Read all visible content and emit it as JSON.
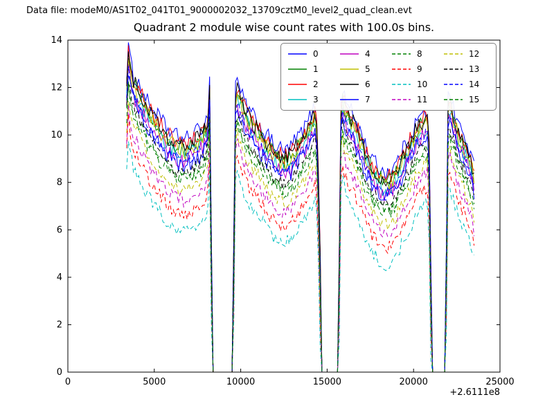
{
  "header": {
    "data_file_label": "Data file: modeM0/AS1T02_041T01_9000002032_13709cztM0_level2_quad_clean.evt"
  },
  "chart_data": {
    "type": "line",
    "title": "Quadrant 2 module wise count rates with 100.0s bins.",
    "xlabel": "",
    "ylabel": "",
    "xlim": [
      0,
      25000
    ],
    "ylim": [
      0,
      14
    ],
    "x_ticks": [
      0,
      5000,
      10000,
      15000,
      20000,
      25000
    ],
    "y_ticks": [
      0,
      2,
      4,
      6,
      8,
      10,
      12,
      14
    ],
    "x_offset_text": "+2.6111e8",
    "bin_seconds": 100.0,
    "grid": false,
    "legend_location": "upper center",
    "legend_columns": 4,
    "resample_step": 100,
    "noise_amplitude_solid": 0.35,
    "noise_amplitude_dashed": 0.28,
    "base_curve": {
      "x": [
        3400,
        3500,
        3650,
        3800,
        4000,
        4200,
        4400,
        4600,
        4800,
        5000,
        5200,
        5400,
        5600,
        5800,
        6000,
        6200,
        6400,
        6600,
        6800,
        7000,
        7200,
        7400,
        7600,
        7800,
        8000,
        8100,
        8200,
        8280,
        8330,
        9550,
        9650,
        9750,
        9900,
        10100,
        10300,
        10500,
        10700,
        10900,
        11100,
        11300,
        11500,
        11700,
        11900,
        12100,
        12300,
        12500,
        12700,
        12900,
        13100,
        13300,
        13500,
        13700,
        13900,
        14100,
        14300,
        14450,
        14600,
        14700,
        15650,
        15750,
        15850,
        16000,
        16200,
        16400,
        16600,
        16800,
        17000,
        17200,
        17400,
        17600,
        17800,
        18000,
        18200,
        18400,
        18600,
        18800,
        19000,
        19200,
        19400,
        19600,
        19800,
        20000,
        20200,
        20400,
        20600,
        20800,
        20950,
        21050,
        21850,
        21950,
        22050,
        22200,
        22350,
        22500,
        22650,
        22800,
        22950,
        23100,
        23250,
        23400,
        23500,
        23550
      ],
      "y": [
        12.5,
        13.8,
        12.9,
        12.5,
        12.3,
        12.0,
        11.7,
        11.4,
        11.2,
        11.0,
        10.8,
        10.6,
        10.4,
        10.2,
        10.1,
        10.0,
        9.9,
        9.9,
        9.8,
        9.9,
        10.0,
        10.1,
        10.2,
        10.4,
        10.6,
        11.0,
        12.3,
        10.0,
        0,
        0,
        11.5,
        12.4,
        12.0,
        11.6,
        11.3,
        11.0,
        10.8,
        10.6,
        10.4,
        10.2,
        10.0,
        9.8,
        9.6,
        9.5,
        9.4,
        9.3,
        9.4,
        9.5,
        9.7,
        9.9,
        10.1,
        10.3,
        10.6,
        10.9,
        11.2,
        10.2,
        5.0,
        0,
        0,
        10.5,
        12.2,
        11.6,
        11.2,
        11.0,
        10.7,
        10.4,
        10.0,
        9.6,
        9.3,
        9.0,
        8.8,
        8.6,
        8.5,
        8.4,
        8.5,
        8.6,
        8.8,
        9.1,
        9.4,
        9.7,
        10.0,
        10.3,
        10.6,
        10.8,
        10.9,
        11.0,
        9.0,
        0,
        0,
        11.2,
        11.9,
        11.4,
        11.0,
        10.7,
        10.4,
        10.1,
        9.9,
        9.6,
        9.3,
        9.0,
        8.6,
        0
      ]
    },
    "series": [
      {
        "name": "0",
        "color": "#0000ff",
        "dash": false,
        "offset": 0.0
      },
      {
        "name": "1",
        "color": "#008000",
        "dash": false,
        "offset": -0.4
      },
      {
        "name": "2",
        "color": "#ff0000",
        "dash": false,
        "offset": -0.2
      },
      {
        "name": "3",
        "color": "#00bfbf",
        "dash": false,
        "offset": -0.7
      },
      {
        "name": "4",
        "color": "#bf00bf",
        "dash": false,
        "offset": -0.9
      },
      {
        "name": "5",
        "color": "#bfbf00",
        "dash": false,
        "offset": -0.5
      },
      {
        "name": "6",
        "color": "#000000",
        "dash": false,
        "offset": -0.3
      },
      {
        "name": "7",
        "color": "#0000ff",
        "dash": false,
        "offset": -1.1
      },
      {
        "name": "8",
        "color": "#008000",
        "dash": true,
        "offset": -1.6
      },
      {
        "name": "9",
        "color": "#ff0000",
        "dash": true,
        "offset": -3.2
      },
      {
        "name": "10",
        "color": "#00bfbf",
        "dash": true,
        "offset": -3.9
      },
      {
        "name": "11",
        "color": "#bf00bf",
        "dash": true,
        "offset": -2.6
      },
      {
        "name": "12",
        "color": "#bfbf00",
        "dash": true,
        "offset": -2.2
      },
      {
        "name": "13",
        "color": "#000000",
        "dash": true,
        "offset": -1.4
      },
      {
        "name": "14",
        "color": "#0000ff",
        "dash": true,
        "offset": -0.9
      },
      {
        "name": "15",
        "color": "#008000",
        "dash": true,
        "offset": -1.8
      }
    ]
  }
}
